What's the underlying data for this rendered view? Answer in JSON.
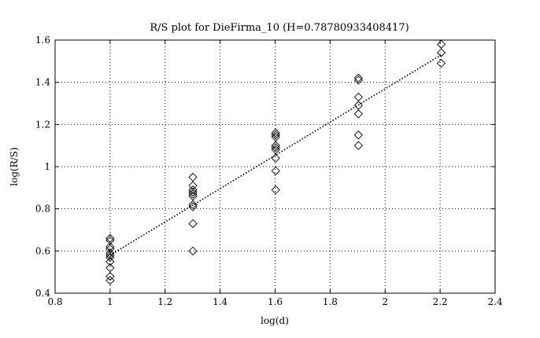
{
  "chart_data": {
    "type": "scatter",
    "title": "R/S plot for DieFirma_10 (H=0.78780933408417)",
    "xlabel": "log(d)",
    "ylabel": "log(R/S)",
    "xlim": [
      0.8,
      2.4
    ],
    "ylim": [
      0.4,
      1.6
    ],
    "xticks": [
      0.8,
      1,
      1.2,
      1.4,
      1.6,
      1.8,
      2,
      2.2,
      2.4
    ],
    "yticks": [
      0.4,
      0.6,
      0.8,
      1,
      1.2,
      1.4,
      1.6
    ],
    "xtick_labels": [
      "0.8",
      "1",
      "1.2",
      "1.4",
      "1.6",
      "1.8",
      "2",
      "2.2",
      "2.4"
    ],
    "ytick_labels": [
      "0.4",
      "0.6",
      "0.8",
      "1",
      "1.2",
      "1.4",
      "1.6"
    ],
    "grid": true,
    "marker": "diamond",
    "color": "#000000",
    "points": [
      {
        "x": 1.0,
        "y": 0.66
      },
      {
        "x": 1.0,
        "y": 0.65
      },
      {
        "x": 1.0,
        "y": 0.62
      },
      {
        "x": 1.0,
        "y": 0.61
      },
      {
        "x": 1.0,
        "y": 0.59
      },
      {
        "x": 1.0,
        "y": 0.58
      },
      {
        "x": 1.0,
        "y": 0.57
      },
      {
        "x": 1.0,
        "y": 0.55
      },
      {
        "x": 1.0,
        "y": 0.52
      },
      {
        "x": 1.0,
        "y": 0.48
      },
      {
        "x": 1.0,
        "y": 0.46
      },
      {
        "x": 1.301,
        "y": 0.95
      },
      {
        "x": 1.301,
        "y": 0.91
      },
      {
        "x": 1.301,
        "y": 0.89
      },
      {
        "x": 1.301,
        "y": 0.88
      },
      {
        "x": 1.301,
        "y": 0.87
      },
      {
        "x": 1.301,
        "y": 0.86
      },
      {
        "x": 1.301,
        "y": 0.82
      },
      {
        "x": 1.301,
        "y": 0.81
      },
      {
        "x": 1.301,
        "y": 0.73
      },
      {
        "x": 1.301,
        "y": 0.6
      },
      {
        "x": 1.602,
        "y": 1.16
      },
      {
        "x": 1.602,
        "y": 1.15
      },
      {
        "x": 1.602,
        "y": 1.14
      },
      {
        "x": 1.602,
        "y": 1.1
      },
      {
        "x": 1.602,
        "y": 1.09
      },
      {
        "x": 1.602,
        "y": 1.08
      },
      {
        "x": 1.602,
        "y": 1.04
      },
      {
        "x": 1.602,
        "y": 0.98
      },
      {
        "x": 1.602,
        "y": 0.89
      },
      {
        "x": 1.903,
        "y": 1.42
      },
      {
        "x": 1.903,
        "y": 1.41
      },
      {
        "x": 1.903,
        "y": 1.33
      },
      {
        "x": 1.903,
        "y": 1.29
      },
      {
        "x": 1.903,
        "y": 1.25
      },
      {
        "x": 1.903,
        "y": 1.15
      },
      {
        "x": 1.903,
        "y": 1.1
      },
      {
        "x": 2.204,
        "y": 1.58
      },
      {
        "x": 2.204,
        "y": 1.54
      },
      {
        "x": 2.204,
        "y": 1.49
      }
    ],
    "fit_line": {
      "x": [
        1.0,
        2.204
      ],
      "y": [
        0.58,
        1.53
      ]
    }
  }
}
